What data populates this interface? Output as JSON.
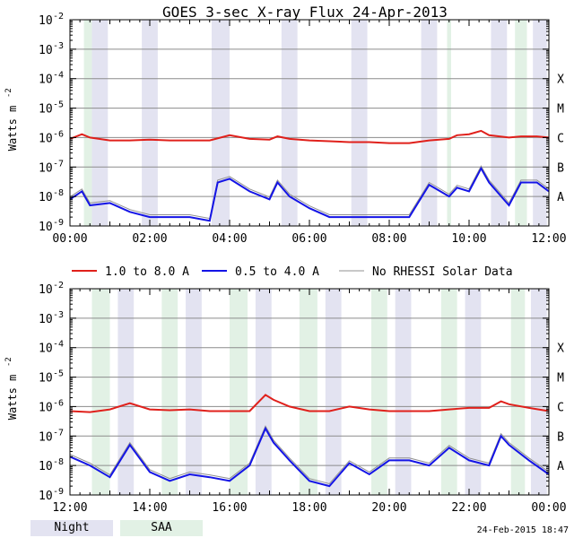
{
  "chart_data": {
    "type": "line",
    "title": "GOES 3-sec X-ray Flux   24-Apr-2013",
    "ylabel": "Watts m",
    "ylabel_sup": "-2",
    "yscale": "log",
    "ylim": [
      1e-09,
      0.01
    ],
    "y_ticks": [
      {
        "base": "10",
        "exp": "-2"
      },
      {
        "base": "10",
        "exp": "-3"
      },
      {
        "base": "10",
        "exp": "-4"
      },
      {
        "base": "10",
        "exp": "-5"
      },
      {
        "base": "10",
        "exp": "-6"
      },
      {
        "base": "10",
        "exp": "-7"
      },
      {
        "base": "10",
        "exp": "-8"
      },
      {
        "base": "10",
        "exp": "-9"
      }
    ],
    "flare_classes": [
      {
        "label": "X",
        "value": 0.0001
      },
      {
        "label": "M",
        "value": 1e-05
      },
      {
        "label": "C",
        "value": 1e-06
      },
      {
        "label": "B",
        "value": 1e-07
      },
      {
        "label": "A",
        "value": 1e-08
      }
    ],
    "legend": [
      {
        "label": "1.0 to 8.0 A",
        "color": "#e0201b"
      },
      {
        "label": "0.5 to 4.0 A",
        "color": "#1414e6"
      },
      {
        "label": "No RHESSI Solar Data",
        "color": "#909090"
      }
    ],
    "night_color": "#e3e3f1",
    "saa_color": "#e2f1e5",
    "panels": [
      {
        "x_ticks": [
          "00:00",
          "02:00",
          "04:00",
          "06:00",
          "08:00",
          "10:00",
          "12:00"
        ],
        "xlim_hours": [
          0,
          12
        ],
        "night": [
          [
            0.55,
            0.95
          ],
          [
            1.8,
            2.2
          ],
          [
            3.55,
            4.0
          ],
          [
            5.3,
            5.7
          ],
          [
            7.05,
            7.45
          ],
          [
            8.8,
            9.2
          ],
          [
            10.55,
            10.95
          ],
          [
            11.6,
            11.95
          ]
        ],
        "saa": [
          [
            0.35,
            0.55
          ],
          [
            9.45,
            9.55
          ],
          [
            11.15,
            11.45
          ]
        ],
        "series": [
          {
            "name": "1.0 to 8.0 A",
            "color": "#e0201b",
            "x": [
              0,
              0.3,
              0.5,
              1.0,
              1.5,
              2.0,
              2.5,
              3.0,
              3.5,
              4.0,
              4.5,
              5.0,
              5.2,
              5.5,
              6.0,
              6.5,
              7.0,
              7.5,
              8.0,
              8.5,
              9.0,
              9.5,
              9.7,
              10.0,
              10.3,
              10.5,
              11.0,
              11.3,
              11.7,
              12.0
            ],
            "y": [
              9e-07,
              1.3e-06,
              1e-06,
              8e-07,
              8e-07,
              8.5e-07,
              8e-07,
              8e-07,
              8e-07,
              1.2e-06,
              9e-07,
              8.5e-07,
              1.1e-06,
              9e-07,
              8e-07,
              7.5e-07,
              7e-07,
              7e-07,
              6.5e-07,
              6.5e-07,
              8e-07,
              9e-07,
              1.2e-06,
              1.3e-06,
              1.7e-06,
              1.2e-06,
              1e-06,
              1.1e-06,
              1.1e-06,
              1e-06
            ]
          },
          {
            "name": "0.5 to 4.0 A",
            "color": "#1414e6",
            "x": [
              0,
              0.3,
              0.5,
              1.0,
              1.5,
              2.0,
              2.5,
              3.0,
              3.5,
              3.7,
              4.0,
              4.5,
              5.0,
              5.2,
              5.5,
              6.0,
              6.5,
              7.0,
              7.5,
              8.0,
              8.5,
              9.0,
              9.5,
              9.7,
              10.0,
              10.3,
              10.5,
              11.0,
              11.3,
              11.7,
              12.0
            ],
            "y": [
              8e-09,
              1.5e-08,
              5e-09,
              6e-09,
              3e-09,
              2e-09,
              2e-09,
              2e-09,
              1.5e-09,
              3e-08,
              4e-08,
              1.5e-08,
              8e-09,
              3e-08,
              1e-08,
              4e-09,
              2e-09,
              2e-09,
              2e-09,
              2e-09,
              2e-09,
              2.5e-08,
              1e-08,
              2e-08,
              1.5e-08,
              9e-08,
              3e-08,
              5e-09,
              3e-08,
              3e-08,
              1.5e-08
            ]
          }
        ]
      },
      {
        "x_ticks": [
          "12:00",
          "14:00",
          "16:00",
          "18:00",
          "20:00",
          "22:00",
          "00:00"
        ],
        "xlim_hours": [
          12,
          24
        ],
        "night": [
          [
            13.2,
            13.6
          ],
          [
            14.9,
            15.3
          ],
          [
            16.65,
            17.05
          ],
          [
            18.4,
            18.8
          ],
          [
            20.15,
            20.55
          ],
          [
            21.9,
            22.3
          ],
          [
            23.55,
            23.95
          ]
        ],
        "saa": [
          [
            12.55,
            13.0
          ],
          [
            14.3,
            14.7
          ],
          [
            16.0,
            16.45
          ],
          [
            17.75,
            18.2
          ],
          [
            19.55,
            19.95
          ],
          [
            21.3,
            21.7
          ],
          [
            23.05,
            23.4
          ]
        ],
        "series": [
          {
            "name": "1.0 to 8.0 A",
            "color": "#e0201b",
            "x": [
              12,
              12.5,
              13.0,
              13.5,
              14.0,
              14.5,
              15.0,
              15.5,
              16.0,
              16.5,
              16.9,
              17.1,
              17.5,
              18.0,
              18.5,
              19.0,
              19.5,
              20.0,
              20.5,
              21.0,
              21.5,
              22.0,
              22.5,
              22.8,
              23.0,
              23.5,
              24.0
            ],
            "y": [
              7e-07,
              6.5e-07,
              8e-07,
              1.3e-06,
              8e-07,
              7.5e-07,
              8e-07,
              7e-07,
              7e-07,
              7e-07,
              2.5e-06,
              1.7e-06,
              1e-06,
              7e-07,
              7e-07,
              1e-06,
              8e-07,
              7e-07,
              7e-07,
              7e-07,
              8e-07,
              9e-07,
              9e-07,
              1.5e-06,
              1.2e-06,
              9e-07,
              7e-07
            ]
          },
          {
            "name": "0.5 to 4.0 A",
            "color": "#1414e6",
            "x": [
              12,
              12.5,
              13.0,
              13.5,
              14.0,
              14.5,
              15.0,
              15.5,
              16.0,
              16.5,
              16.9,
              17.1,
              17.5,
              18.0,
              18.5,
              19.0,
              19.5,
              20.0,
              20.5,
              21.0,
              21.5,
              22.0,
              22.5,
              22.8,
              23.0,
              23.5,
              24.0
            ],
            "y": [
              2e-08,
              1e-08,
              4e-09,
              5e-08,
              6e-09,
              3e-09,
              5e-09,
              4e-09,
              3e-09,
              1e-08,
              1.8e-07,
              6e-08,
              1.5e-08,
              3e-09,
              2e-09,
              1.2e-08,
              5e-09,
              1.5e-08,
              1.5e-08,
              1e-08,
              4e-08,
              1.5e-08,
              1e-08,
              1e-07,
              5e-08,
              1.5e-08,
              5e-09
            ]
          }
        ]
      }
    ]
  },
  "footer": {
    "night_label": "Night",
    "saa_label": "SAA",
    "timestamp": "24-Feb-2015 18:47"
  }
}
